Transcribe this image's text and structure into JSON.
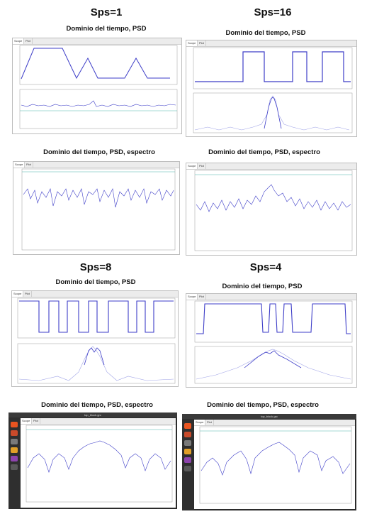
{
  "headings": {
    "sps1": "Sps=1",
    "sps16": "Sps=16",
    "sps8": "Sps=8",
    "sps4": "Sps=4"
  },
  "subheadings": {
    "psd": "Dominio del tiempo, PSD",
    "psd_espectro": "Dominio del tiempo, PSD, espectro"
  },
  "tabs": {
    "tab1": "Scope",
    "tab2": "Plot"
  },
  "ubuntu": {
    "window_title": "top_block.grc"
  },
  "colors": {
    "trace": "#3e3ec8",
    "trace_light": "#9fa3e6",
    "threshold": "#4db6ac",
    "dock": "#2f2f2f",
    "orange_icon": "#e95420"
  }
}
